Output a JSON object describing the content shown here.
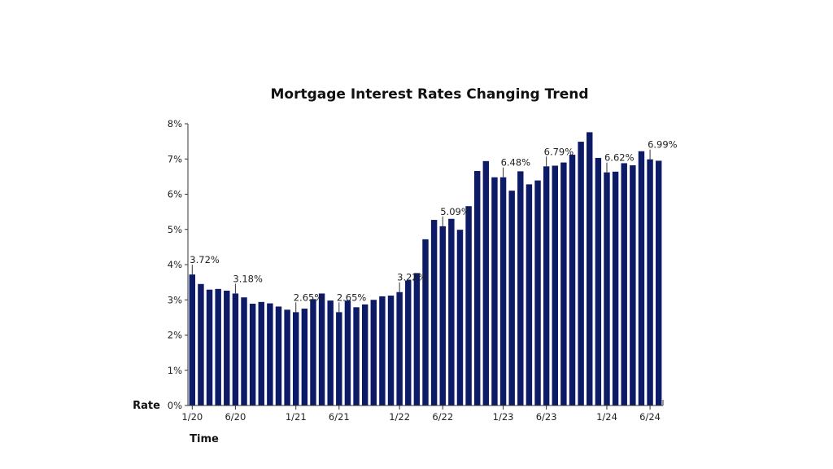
{
  "chart_data": {
    "type": "bar",
    "title": "Mortgage Interest Rates Changing Trend",
    "xlabel": "Time",
    "ylabel": "Rate",
    "ylim": [
      0,
      8
    ],
    "yticks": [
      0,
      1,
      2,
      3,
      4,
      5,
      6,
      7,
      8
    ],
    "ytick_labels": [
      "0%",
      "1%",
      "2%",
      "3%",
      "4%",
      "5%",
      "6%",
      "7%",
      "8%"
    ],
    "x_tick_labels": [
      {
        "index": 0,
        "label": "1/20"
      },
      {
        "index": 5,
        "label": "6/20"
      },
      {
        "index": 12,
        "label": "1/21"
      },
      {
        "index": 17,
        "label": "6/21"
      },
      {
        "index": 24,
        "label": "1/22"
      },
      {
        "index": 29,
        "label": "6/22"
      },
      {
        "index": 36,
        "label": "1/23"
      },
      {
        "index": 41,
        "label": "6/23"
      },
      {
        "index": 48,
        "label": "1/24"
      },
      {
        "index": 53,
        "label": "6/24"
      }
    ],
    "values": [
      3.72,
      3.45,
      3.29,
      3.31,
      3.26,
      3.18,
      3.07,
      2.89,
      2.94,
      2.9,
      2.81,
      2.72,
      2.65,
      2.75,
      3.02,
      3.18,
      2.98,
      2.65,
      2.98,
      2.79,
      2.87,
      3.0,
      3.1,
      3.12,
      3.22,
      3.55,
      3.76,
      4.72,
      5.27,
      5.09,
      5.3,
      4.99,
      5.66,
      6.66,
      6.94,
      6.48,
      6.48,
      6.1,
      6.65,
      6.28,
      6.39,
      6.79,
      6.81,
      6.9,
      7.12,
      7.49,
      7.76,
      7.03,
      6.62,
      6.64,
      6.88,
      6.82,
      7.22,
      6.99,
      6.95
    ],
    "annotations": [
      {
        "index": 0,
        "label": "3.72%"
      },
      {
        "index": 5,
        "label": "3.18%"
      },
      {
        "index": 12,
        "label": "2.65%"
      },
      {
        "index": 17,
        "label": "2.65%"
      },
      {
        "index": 24,
        "label": "3.22%"
      },
      {
        "index": 29,
        "label": "5.09%"
      },
      {
        "index": 36,
        "label": "6.48%"
      },
      {
        "index": 41,
        "label": "6.79%"
      },
      {
        "index": 48,
        "label": "6.62%"
      },
      {
        "index": 53,
        "label": "6.99%"
      }
    ],
    "bar_color": "#0d1a66",
    "grid": false,
    "legend": "none"
  }
}
